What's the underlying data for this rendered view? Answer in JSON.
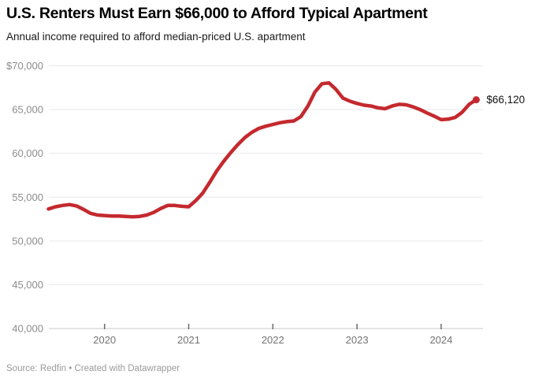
{
  "header": {
    "title": "U.S. Renters Must Earn $66,000 to Afford Typical Apartment",
    "subtitle": "Annual income required to afford median-priced U.S. apartment"
  },
  "footer": {
    "source": "Source: Redfin • Created with Datawrapper"
  },
  "chart_data": {
    "type": "line",
    "title": "U.S. Renters Must Earn $66,000 to Afford Typical Apartment",
    "subtitle": "Annual income required to afford median-priced U.S. apartment",
    "series_name": "Annual income required to afford median-priced U.S. apartment",
    "line_color": "#c4292e",
    "grid_color": "#e9e9e9",
    "axis_line_color": "#c9c9c9",
    "tick_color": "#6b6b6b",
    "ylim": [
      40000,
      70000
    ],
    "xlim": [
      2019.333,
      2024.5
    ],
    "grid": true,
    "legend_position": "none",
    "y_axis": {
      "ticks": [
        {
          "value": 70000,
          "label": "$70,000"
        },
        {
          "value": 65000,
          "label": "65,000"
        },
        {
          "value": 60000,
          "label": "60,000"
        },
        {
          "value": 55000,
          "label": "55,000"
        },
        {
          "value": 50000,
          "label": "50,000"
        },
        {
          "value": 45000,
          "label": "45,000"
        },
        {
          "value": 40000,
          "label": "40,000"
        }
      ]
    },
    "x_axis": {
      "ticks": [
        {
          "value": 2020,
          "label": "2020"
        },
        {
          "value": 2021,
          "label": "2021"
        },
        {
          "value": 2022,
          "label": "2022"
        },
        {
          "value": 2023,
          "label": "2023"
        },
        {
          "value": 2024,
          "label": "2024"
        }
      ]
    },
    "annotation": {
      "text": "$66,120"
    },
    "points": [
      {
        "date": "2019-05",
        "value": 53650
      },
      {
        "date": "2019-06",
        "value": 53900
      },
      {
        "date": "2019-07",
        "value": 54050
      },
      {
        "date": "2019-08",
        "value": 54150
      },
      {
        "date": "2019-09",
        "value": 54000
      },
      {
        "date": "2019-10",
        "value": 53600
      },
      {
        "date": "2019-11",
        "value": 53150
      },
      {
        "date": "2019-12",
        "value": 52950
      },
      {
        "date": "2020-01",
        "value": 52900
      },
      {
        "date": "2020-02",
        "value": 52850
      },
      {
        "date": "2020-03",
        "value": 52850
      },
      {
        "date": "2020-04",
        "value": 52800
      },
      {
        "date": "2020-05",
        "value": 52750
      },
      {
        "date": "2020-06",
        "value": 52800
      },
      {
        "date": "2020-07",
        "value": 52950
      },
      {
        "date": "2020-08",
        "value": 53250
      },
      {
        "date": "2020-09",
        "value": 53700
      },
      {
        "date": "2020-10",
        "value": 54050
      },
      {
        "date": "2020-11",
        "value": 54050
      },
      {
        "date": "2020-12",
        "value": 53950
      },
      {
        "date": "2021-01",
        "value": 53900
      },
      {
        "date": "2021-02",
        "value": 54600
      },
      {
        "date": "2021-03",
        "value": 55450
      },
      {
        "date": "2021-04",
        "value": 56700
      },
      {
        "date": "2021-05",
        "value": 58000
      },
      {
        "date": "2021-06",
        "value": 59100
      },
      {
        "date": "2021-07",
        "value": 60100
      },
      {
        "date": "2021-08",
        "value": 61000
      },
      {
        "date": "2021-09",
        "value": 61800
      },
      {
        "date": "2021-10",
        "value": 62400
      },
      {
        "date": "2021-11",
        "value": 62850
      },
      {
        "date": "2021-12",
        "value": 63100
      },
      {
        "date": "2022-01",
        "value": 63300
      },
      {
        "date": "2022-02",
        "value": 63500
      },
      {
        "date": "2022-03",
        "value": 63620
      },
      {
        "date": "2022-04",
        "value": 63700
      },
      {
        "date": "2022-05",
        "value": 64200
      },
      {
        "date": "2022-06",
        "value": 65400
      },
      {
        "date": "2022-07",
        "value": 67000
      },
      {
        "date": "2022-08",
        "value": 67950
      },
      {
        "date": "2022-09",
        "value": 68050
      },
      {
        "date": "2022-10",
        "value": 67300
      },
      {
        "date": "2022-11",
        "value": 66300
      },
      {
        "date": "2022-12",
        "value": 65950
      },
      {
        "date": "2023-01",
        "value": 65700
      },
      {
        "date": "2023-02",
        "value": 65500
      },
      {
        "date": "2023-03",
        "value": 65400
      },
      {
        "date": "2023-04",
        "value": 65200
      },
      {
        "date": "2023-05",
        "value": 65100
      },
      {
        "date": "2023-06",
        "value": 65400
      },
      {
        "date": "2023-07",
        "value": 65600
      },
      {
        "date": "2023-08",
        "value": 65550
      },
      {
        "date": "2023-09",
        "value": 65300
      },
      {
        "date": "2023-10",
        "value": 65000
      },
      {
        "date": "2023-11",
        "value": 64600
      },
      {
        "date": "2023-12",
        "value": 64250
      },
      {
        "date": "2024-01",
        "value": 63850
      },
      {
        "date": "2024-02",
        "value": 63900
      },
      {
        "date": "2024-03",
        "value": 64100
      },
      {
        "date": "2024-04",
        "value": 64700
      },
      {
        "date": "2024-05",
        "value": 65600
      },
      {
        "date": "2024-06",
        "value": 66120
      }
    ]
  }
}
